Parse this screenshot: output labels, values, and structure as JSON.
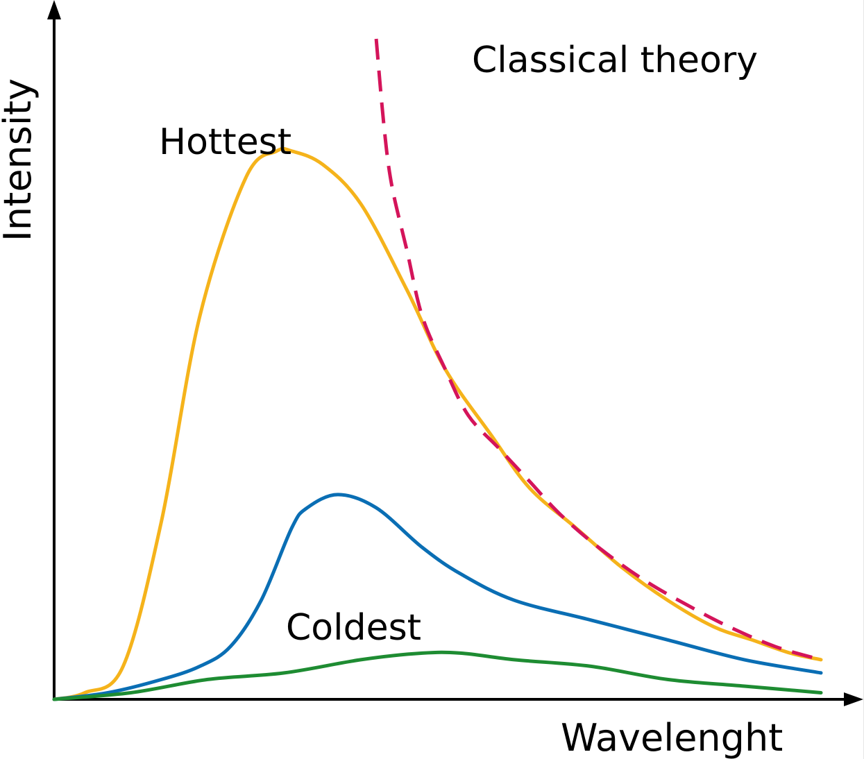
{
  "chart_data": {
    "type": "line",
    "title": "",
    "xlabel": "Wavelenght",
    "ylabel": "Intensity",
    "xlim": [
      0,
      1
    ],
    "ylim": [
      0,
      1
    ],
    "ticks": false,
    "grid": false,
    "legend": "none",
    "annotations": [
      {
        "text": "Classical theory",
        "refers_to": "classical"
      },
      {
        "text": "Hottest",
        "refers_to": "hottest"
      },
      {
        "text": "Coldest",
        "refers_to": "coldest"
      }
    ],
    "series": [
      {
        "id": "hottest",
        "color": "#F5B31B",
        "dash": "solid",
        "points": [
          [
            0.0,
            0.0
          ],
          [
            0.04,
            0.01
          ],
          [
            0.09,
            0.05
          ],
          [
            0.14,
            0.27
          ],
          [
            0.19,
            0.58
          ],
          [
            0.25,
            0.79
          ],
          [
            0.29,
            0.83
          ],
          [
            0.31,
            0.83
          ],
          [
            0.35,
            0.81
          ],
          [
            0.4,
            0.75
          ],
          [
            0.46,
            0.62
          ],
          [
            0.51,
            0.5
          ],
          [
            0.57,
            0.4
          ],
          [
            0.62,
            0.32
          ],
          [
            0.68,
            0.26
          ],
          [
            0.74,
            0.2
          ],
          [
            0.8,
            0.15
          ],
          [
            0.86,
            0.11
          ],
          [
            0.91,
            0.09
          ],
          [
            0.96,
            0.07
          ],
          [
            1.0,
            0.06
          ]
        ]
      },
      {
        "id": "middle",
        "color": "#0A6EB4",
        "dash": "solid",
        "points": [
          [
            0.0,
            0.0
          ],
          [
            0.07,
            0.01
          ],
          [
            0.14,
            0.03
          ],
          [
            0.19,
            0.05
          ],
          [
            0.23,
            0.08
          ],
          [
            0.27,
            0.15
          ],
          [
            0.31,
            0.26
          ],
          [
            0.33,
            0.29
          ],
          [
            0.37,
            0.31
          ],
          [
            0.42,
            0.29
          ],
          [
            0.48,
            0.23
          ],
          [
            0.53,
            0.19
          ],
          [
            0.6,
            0.15
          ],
          [
            0.7,
            0.12
          ],
          [
            0.8,
            0.09
          ],
          [
            0.9,
            0.06
          ],
          [
            1.0,
            0.04
          ]
        ]
      },
      {
        "id": "coldest",
        "color": "#1E8C32",
        "dash": "solid",
        "points": [
          [
            0.0,
            0.0
          ],
          [
            0.1,
            0.01
          ],
          [
            0.2,
            0.03
          ],
          [
            0.3,
            0.04
          ],
          [
            0.4,
            0.06
          ],
          [
            0.48,
            0.07
          ],
          [
            0.53,
            0.07
          ],
          [
            0.6,
            0.06
          ],
          [
            0.7,
            0.05
          ],
          [
            0.8,
            0.03
          ],
          [
            0.9,
            0.02
          ],
          [
            1.0,
            0.01
          ]
        ]
      },
      {
        "id": "classical",
        "color": "#D4145A",
        "dash": "dashed",
        "points": [
          [
            0.42,
            1.0
          ],
          [
            0.43,
            0.87
          ],
          [
            0.44,
            0.78
          ],
          [
            0.46,
            0.68
          ],
          [
            0.48,
            0.58
          ],
          [
            0.51,
            0.5
          ],
          [
            0.54,
            0.43
          ],
          [
            0.58,
            0.38
          ],
          [
            0.62,
            0.33
          ],
          [
            0.66,
            0.28
          ],
          [
            0.71,
            0.23
          ],
          [
            0.77,
            0.18
          ],
          [
            0.83,
            0.14
          ],
          [
            0.88,
            0.11
          ],
          [
            0.94,
            0.08
          ],
          [
            1.0,
            0.06
          ]
        ]
      }
    ]
  }
}
